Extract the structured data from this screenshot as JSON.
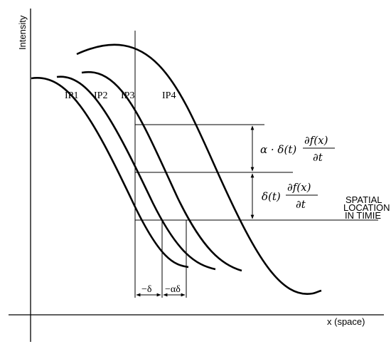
{
  "axes": {
    "y_label": "Intensity",
    "x_label": "x (space)"
  },
  "curves": [
    {
      "label": "IP1"
    },
    {
      "label": "IP2"
    },
    {
      "label": "IP3"
    },
    {
      "label": "IP4"
    }
  ],
  "annotations": {
    "term_top_prefix": "α · δ(t)",
    "term_bottom_prefix": "δ(t)",
    "partial_numerator": "∂f(x)",
    "partial_denominator": "∂t",
    "spatial_line1": "SPATIAL",
    "spatial_line2": "LOCATION",
    "spatial_line3": "IN TIMIE",
    "delta_label": "−δ",
    "alpha_delta_label": "−αδ"
  }
}
